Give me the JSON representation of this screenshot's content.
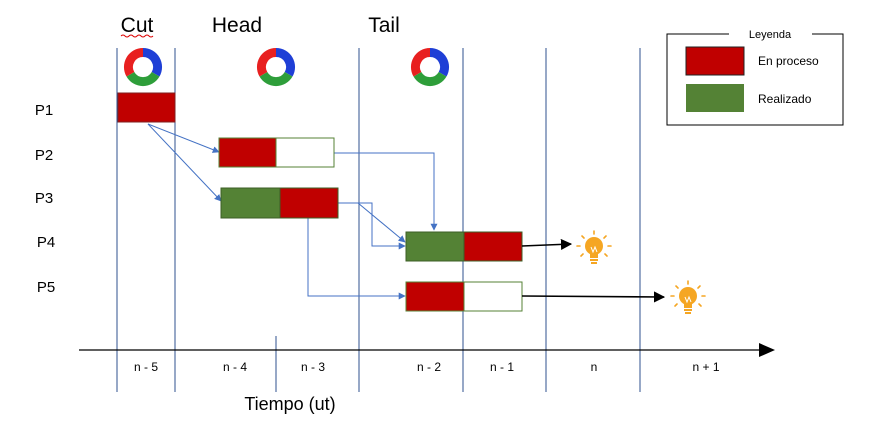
{
  "headers": {
    "cut": "Cut",
    "head": "Head",
    "tail": "Tail"
  },
  "rows": [
    "P1",
    "P2",
    "P3",
    "P4",
    "P5"
  ],
  "time_labels": [
    "n - 5",
    "n - 4",
    "n - 3",
    "n - 2",
    "n - 1",
    "n",
    "n + 1"
  ],
  "axis_label": "Tiempo (ut)",
  "legend": {
    "title": "Leyenda",
    "items": [
      {
        "label": "En proceso",
        "color": "#c00000"
      },
      {
        "label": "Realizado",
        "color": "#548235"
      }
    ]
  },
  "colors": {
    "in_progress": "#c00000",
    "done": "#548235",
    "empty": "#ffffff",
    "arrow": "#4472c4",
    "grid_line": "#2f528f",
    "bulb": "#f5a623",
    "cycle_icon": [
      "#1f3fd6",
      "#2e9e3a",
      "#e82020"
    ]
  },
  "icons": {
    "cycle": "cycle-icon",
    "bulb": "lightbulb-icon"
  }
}
